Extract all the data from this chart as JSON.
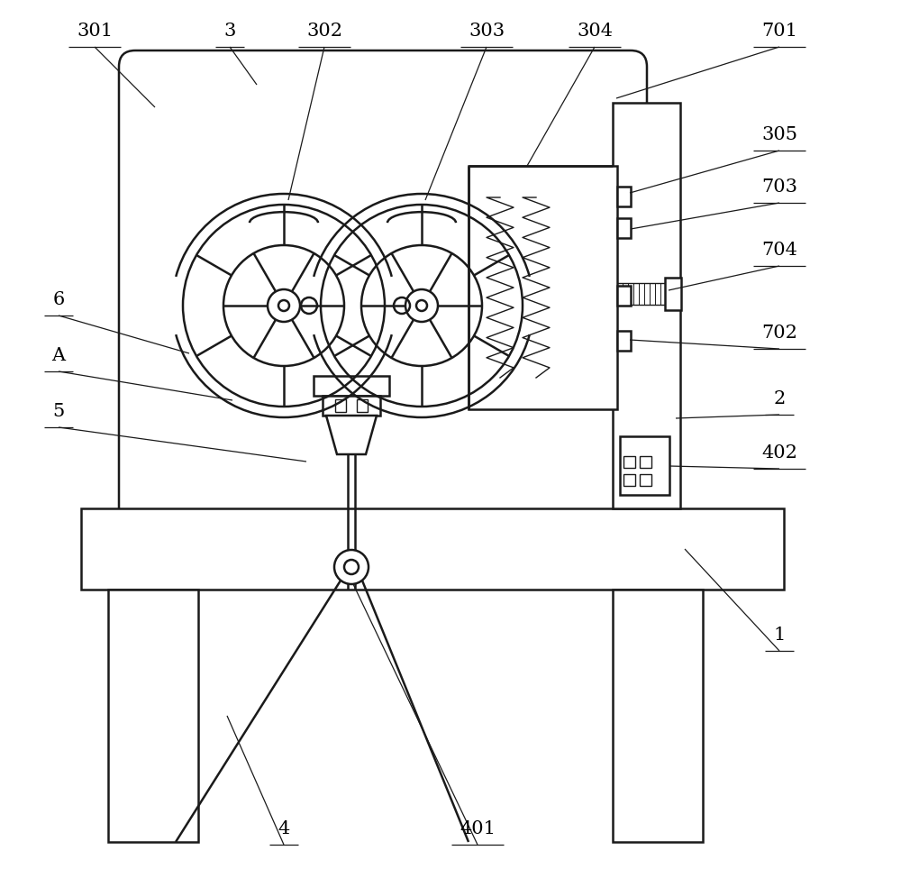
{
  "bg_color": "#ffffff",
  "line_color": "#1a1a1a",
  "line_width": 1.8,
  "thin_line": 1.0,
  "label_fontsize": 15,
  "label_color": "#000000"
}
